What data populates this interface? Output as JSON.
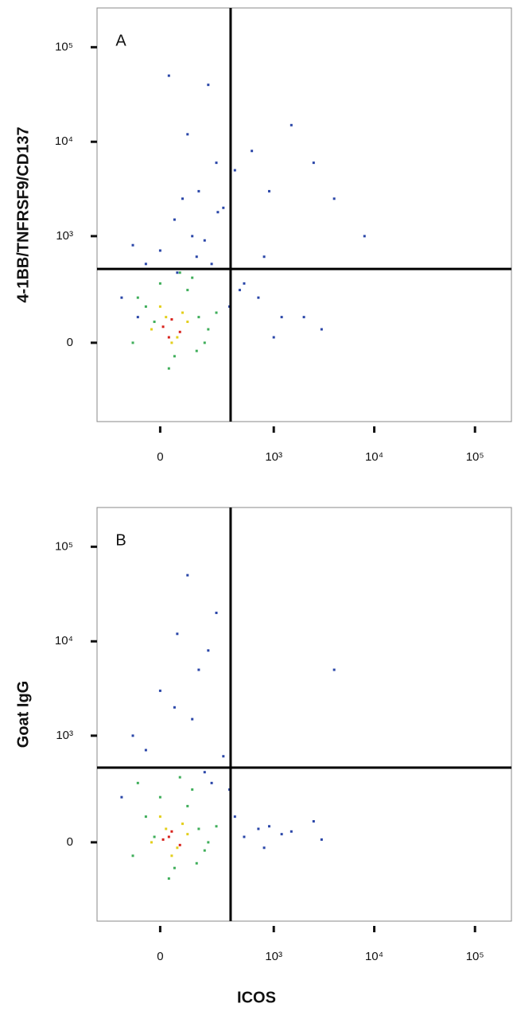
{
  "chart_data": [
    {
      "type": "scatter",
      "panel_label": "A",
      "ylabel": "4-1BB/TNFRSF9/CD137",
      "xscale": "biexponential",
      "yscale": "biexponential",
      "xlim": [
        -300,
        230000
      ],
      "ylim": [
        -500,
        260000
      ],
      "xticks": [
        0,
        {
          "value": 1000,
          "label": "10³"
        },
        {
          "value": 10000,
          "label": "10⁴"
        },
        {
          "value": 100000,
          "label": "10⁵"
        }
      ],
      "yticks": [
        0,
        {
          "value": 1000,
          "label": "10³"
        },
        {
          "value": 10000,
          "label": "10⁴"
        },
        {
          "value": 100000,
          "label": "10⁵"
        }
      ],
      "gates": {
        "x": 360,
        "y": 440
      },
      "series": [
        {
          "color": "#2a46a8",
          "x": [
            -100,
            50,
            150,
            250,
            -50,
            100,
            300,
            200,
            400,
            600,
            900,
            1500,
            2500,
            4000,
            8000,
            700,
            1200,
            3000,
            500,
            800,
            -150,
            0,
            120,
            220,
            80,
            180,
            350,
            450,
            1000,
            2000,
            60,
            140,
            -80,
            260,
            30
          ],
          "y": [
            800,
            1500,
            3000,
            6000,
            500,
            12000,
            2000,
            40000,
            5000,
            8000,
            3000,
            15000,
            6000,
            2500,
            1000,
            200,
            100,
            50,
            300,
            600,
            200,
            700,
            1000,
            500,
            2500,
            900,
            150,
            250,
            20,
            100,
            400,
            600,
            100,
            1800,
            50000
          ]
        },
        {
          "color": "#3fae5a",
          "x": [
            -100,
            -50,
            0,
            50,
            100,
            150,
            200,
            -80,
            30,
            120,
            180,
            250,
            -20,
            70,
            140
          ],
          "y": [
            0,
            150,
            300,
            -50,
            250,
            100,
            50,
            200,
            -100,
            350,
            0,
            120,
            80,
            400,
            -30
          ]
        },
        {
          "color": "#e3cf1c",
          "x": [
            -30,
            20,
            60,
            100,
            0,
            40,
            80
          ],
          "y": [
            50,
            100,
            20,
            80,
            150,
            0,
            120
          ]
        },
        {
          "color": "#d8231c",
          "x": [
            10,
            40,
            70,
            30
          ],
          "y": [
            60,
            90,
            40,
            20
          ]
        }
      ]
    },
    {
      "type": "scatter",
      "panel_label": "B",
      "ylabel": "Goat IgG",
      "xlabel": "ICOS",
      "xscale": "biexponential",
      "yscale": "biexponential",
      "xlim": [
        -300,
        230000
      ],
      "ylim": [
        -500,
        260000
      ],
      "xticks": [
        0,
        {
          "value": 1000,
          "label": "10³"
        },
        {
          "value": 10000,
          "label": "10⁴"
        },
        {
          "value": 100000,
          "label": "10⁵"
        }
      ],
      "yticks": [
        0,
        {
          "value": 1000,
          "label": "10³"
        },
        {
          "value": 10000,
          "label": "10⁴"
        },
        {
          "value": 100000,
          "label": "10⁵"
        }
      ],
      "gates": {
        "x": 360,
        "y": 450
      },
      "series": [
        {
          "color": "#2a46a8",
          "x": [
            -100,
            50,
            150,
            250,
            100,
            200,
            300,
            400,
            700,
            1200,
            2500,
            4000,
            -50,
            0,
            120,
            500,
            800,
            1500,
            3000,
            60,
            180,
            220,
            -150,
            350,
            900
          ],
          "y": [
            1000,
            2000,
            5000,
            20000,
            50000,
            8000,
            600,
            100,
            50,
            30,
            80,
            5000,
            700,
            3000,
            1500,
            20,
            -20,
            40,
            10,
            12000,
            400,
            300,
            200,
            250,
            60
          ]
        },
        {
          "color": "#3fae5a",
          "x": [
            -100,
            -50,
            0,
            50,
            100,
            150,
            200,
            -80,
            30,
            120,
            180,
            250,
            -20,
            70,
            140
          ],
          "y": [
            -50,
            100,
            200,
            -100,
            150,
            50,
            0,
            300,
            -150,
            250,
            -30,
            60,
            20,
            350,
            -80
          ]
        },
        {
          "color": "#e3cf1c",
          "x": [
            -30,
            20,
            60,
            100,
            0,
            40,
            80
          ],
          "y": [
            0,
            50,
            -20,
            30,
            100,
            -50,
            70
          ]
        },
        {
          "color": "#d8231c",
          "x": [
            10,
            40,
            70,
            30
          ],
          "y": [
            10,
            40,
            -10,
            20
          ]
        }
      ]
    }
  ]
}
